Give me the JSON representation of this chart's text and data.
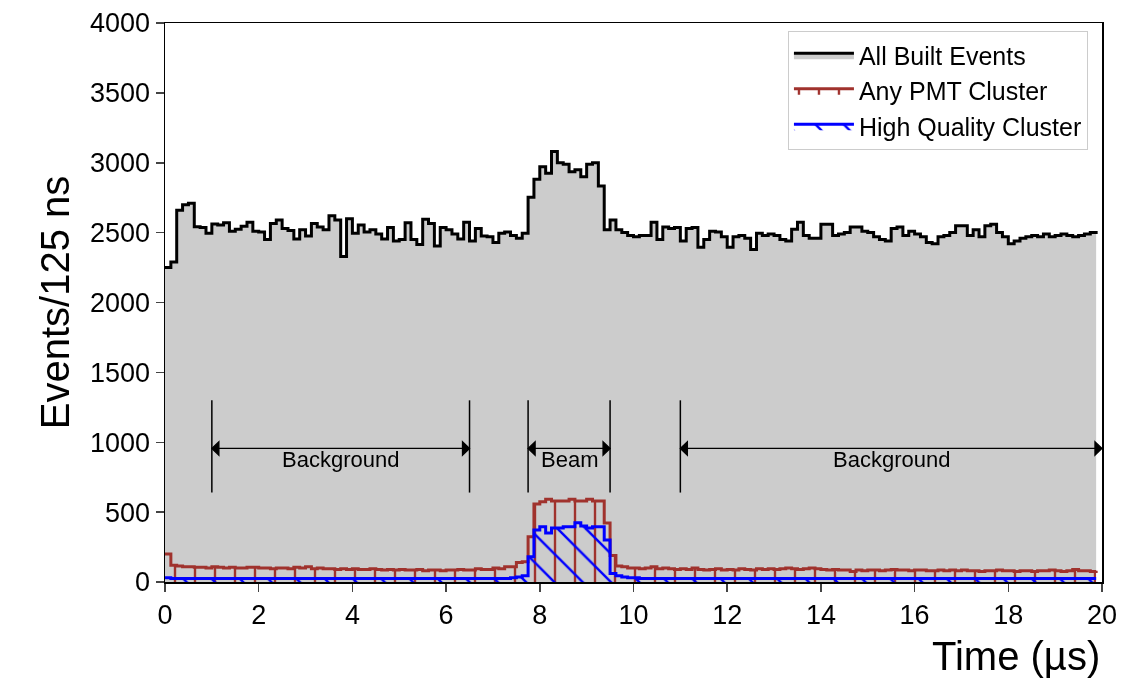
{
  "chart_data": {
    "type": "area",
    "xlabel": "Time (µs)",
    "ylabel": "Events/125 ns",
    "x": [
      0,
      0.125,
      0.25,
      0.375,
      0.5,
      0.625,
      0.75,
      0.875,
      1,
      1.125,
      1.25,
      1.375,
      1.5,
      1.625,
      1.75,
      1.875,
      2,
      2.125,
      2.25,
      2.375,
      2.5,
      2.625,
      2.75,
      2.875,
      3,
      3.125,
      3.25,
      3.375,
      3.5,
      3.625,
      3.75,
      3.875,
      4,
      4.125,
      4.25,
      4.375,
      4.5,
      4.625,
      4.75,
      4.875,
      5,
      5.125,
      5.25,
      5.375,
      5.5,
      5.625,
      5.75,
      5.875,
      6,
      6.125,
      6.25,
      6.375,
      6.5,
      6.625,
      6.75,
      6.875,
      7,
      7.125,
      7.25,
      7.375,
      7.5,
      7.625,
      7.75,
      7.875,
      8,
      8.125,
      8.25,
      8.375,
      8.5,
      8.625,
      8.75,
      8.875,
      9,
      9.125,
      9.25,
      9.375,
      9.5,
      9.625,
      9.75,
      9.875,
      10,
      10.125,
      10.25,
      10.375,
      10.5,
      10.625,
      10.75,
      10.875,
      11,
      11.125,
      11.25,
      11.375,
      11.5,
      11.625,
      11.75,
      11.875,
      12,
      12.125,
      12.25,
      12.375,
      12.5,
      12.625,
      12.75,
      12.875,
      13,
      13.125,
      13.25,
      13.375,
      13.5,
      13.625,
      13.75,
      13.875,
      14,
      14.125,
      14.25,
      14.375,
      14.5,
      14.625,
      14.75,
      14.875,
      15,
      15.125,
      15.25,
      15.375,
      15.5,
      15.625,
      15.75,
      15.875,
      16,
      16.125,
      16.25,
      16.375,
      16.5,
      16.625,
      16.75,
      16.875,
      17,
      17.125,
      17.25,
      17.375,
      17.5,
      17.625,
      17.75,
      17.875,
      18,
      18.125,
      18.25,
      18.375,
      18.5,
      18.625,
      18.75,
      18.875,
      19,
      19.125,
      19.25,
      19.375,
      19.5,
      19.625,
      19.75,
      19.875
    ],
    "series": [
      {
        "name": "All Built Events",
        "color": "#000000",
        "values": [
          2250,
          2290,
          2660,
          2700,
          2710,
          2542,
          2537,
          2495,
          2562,
          2555,
          2570,
          2510,
          2525,
          2545,
          2575,
          2510,
          2505,
          2450,
          2565,
          2590,
          2530,
          2515,
          2455,
          2520,
          2475,
          2565,
          2540,
          2520,
          2620,
          2590,
          2330,
          2600,
          2495,
          2555,
          2505,
          2520,
          2490,
          2455,
          2537,
          2440,
          2450,
          2570,
          2450,
          2415,
          2595,
          2565,
          2405,
          2537,
          2520,
          2490,
          2455,
          2575,
          2440,
          2530,
          2475,
          2470,
          2430,
          2495,
          2505,
          2480,
          2460,
          2495,
          2753,
          2882,
          2972,
          2925,
          3080,
          3000,
          2990,
          2936,
          2950,
          2900,
          2990,
          3000,
          2834,
          2520,
          2590,
          2520,
          2500,
          2480,
          2470,
          2480,
          2480,
          2575,
          2450,
          2540,
          2530,
          2537,
          2440,
          2530,
          2537,
          2395,
          2450,
          2510,
          2505,
          2470,
          2395,
          2470,
          2480,
          2460,
          2380,
          2495,
          2480,
          2490,
          2480,
          2450,
          2440,
          2525,
          2575,
          2480,
          2460,
          2460,
          2560,
          2560,
          2480,
          2490,
          2500,
          2540,
          2540,
          2510,
          2500,
          2470,
          2450,
          2440,
          2530,
          2540,
          2480,
          2510,
          2490,
          2470,
          2430,
          2420,
          2470,
          2480,
          2500,
          2550,
          2550,
          2480,
          2520,
          2470,
          2550,
          2560,
          2500,
          2470,
          2420,
          2440,
          2460,
          2470,
          2480,
          2470,
          2490,
          2470,
          2480,
          2490,
          2480,
          2470,
          2480,
          2490,
          2500,
          2490
        ]
      },
      {
        "name": "Any PMT Cluster",
        "color": "#a0322d",
        "values": [
          200,
          120,
          115,
          110,
          110,
          105,
          105,
          100,
          110,
          105,
          100,
          105,
          100,
          100,
          105,
          105,
          100,
          100,
          95,
          100,
          100,
          95,
          105,
          100,
          110,
          95,
          100,
          95,
          95,
          90,
          95,
          90,
          95,
          90,
          90,
          95,
          90,
          85,
          90,
          85,
          90,
          85,
          85,
          90,
          80,
          85,
          85,
          80,
          85,
          85,
          90,
          85,
          85,
          95,
          90,
          90,
          100,
          95,
          110,
          110,
          140,
          145,
          324,
          558,
          575,
          592,
          580,
          580,
          580,
          592,
          580,
          580,
          592,
          580,
          580,
          422,
          190,
          115,
          110,
          100,
          100,
          95,
          100,
          110,
          95,
          100,
          95,
          90,
          95,
          90,
          100,
          90,
          85,
          90,
          95,
          85,
          90,
          85,
          95,
          90,
          85,
          95,
          90,
          95,
          90,
          95,
          100,
          95,
          90,
          95,
          100,
          95,
          90,
          85,
          90,
          85,
          85,
          75,
          85,
          80,
          85,
          85,
          80,
          85,
          90,
          85,
          85,
          80,
          85,
          85,
          80,
          80,
          85,
          80,
          85,
          80,
          85,
          80,
          80,
          75,
          80,
          80,
          85,
          80,
          80,
          75,
          80,
          80,
          75,
          80,
          80,
          85,
          80,
          75,
          80,
          90,
          80,
          80,
          75,
          80
        ]
      },
      {
        "name": "High Quality Cluster",
        "color": "#0000ff",
        "values": [
          30,
          25,
          25,
          25,
          25,
          25,
          25,
          25,
          25,
          25,
          25,
          25,
          25,
          25,
          25,
          25,
          25,
          25,
          25,
          25,
          25,
          25,
          25,
          25,
          25,
          25,
          25,
          25,
          25,
          25,
          25,
          25,
          25,
          25,
          25,
          25,
          25,
          25,
          25,
          25,
          25,
          25,
          25,
          25,
          25,
          25,
          25,
          25,
          25,
          25,
          25,
          25,
          25,
          25,
          25,
          25,
          25,
          25,
          25,
          30,
          35,
          45,
          181,
          372,
          396,
          350,
          386,
          386,
          396,
          396,
          424,
          400,
          386,
          396,
          396,
          300,
          60,
          45,
          35,
          30,
          30,
          25,
          25,
          25,
          25,
          25,
          25,
          25,
          25,
          25,
          25,
          25,
          25,
          25,
          25,
          25,
          25,
          25,
          25,
          25,
          25,
          25,
          25,
          25,
          25,
          25,
          25,
          25,
          25,
          25,
          25,
          25,
          25,
          25,
          25,
          25,
          25,
          25,
          25,
          25,
          25,
          25,
          25,
          25,
          25,
          25,
          25,
          25,
          25,
          25,
          25,
          25,
          25,
          25,
          25,
          25,
          25,
          25,
          25,
          25,
          25,
          25,
          25,
          25,
          25,
          25,
          25,
          25,
          25,
          25,
          25,
          25,
          25,
          25,
          25,
          25,
          25,
          25,
          25,
          25
        ]
      }
    ],
    "xlim": [
      0,
      20
    ],
    "xticks": [
      0,
      2,
      4,
      6,
      8,
      10,
      12,
      14,
      16,
      18,
      20
    ],
    "ylim": [
      0,
      4000
    ],
    "yticks": [
      0,
      500,
      1000,
      1500,
      2000,
      2500,
      3000,
      3500,
      4000
    ],
    "grid": false,
    "legend": "top right",
    "ref_lines": [
      {
        "axis": "x",
        "value": 1,
        "color": "#000000"
      },
      {
        "axis": "x",
        "value": 6.5,
        "color": "#000000"
      },
      {
        "axis": "x",
        "value": 7.75,
        "color": "#000000"
      },
      {
        "axis": "x",
        "value": 9.5,
        "color": "#000000"
      },
      {
        "axis": "x",
        "value": 11,
        "color": "#000000"
      }
    ],
    "annotations": [
      "Background",
      "Beam",
      "Background"
    ]
  }
}
